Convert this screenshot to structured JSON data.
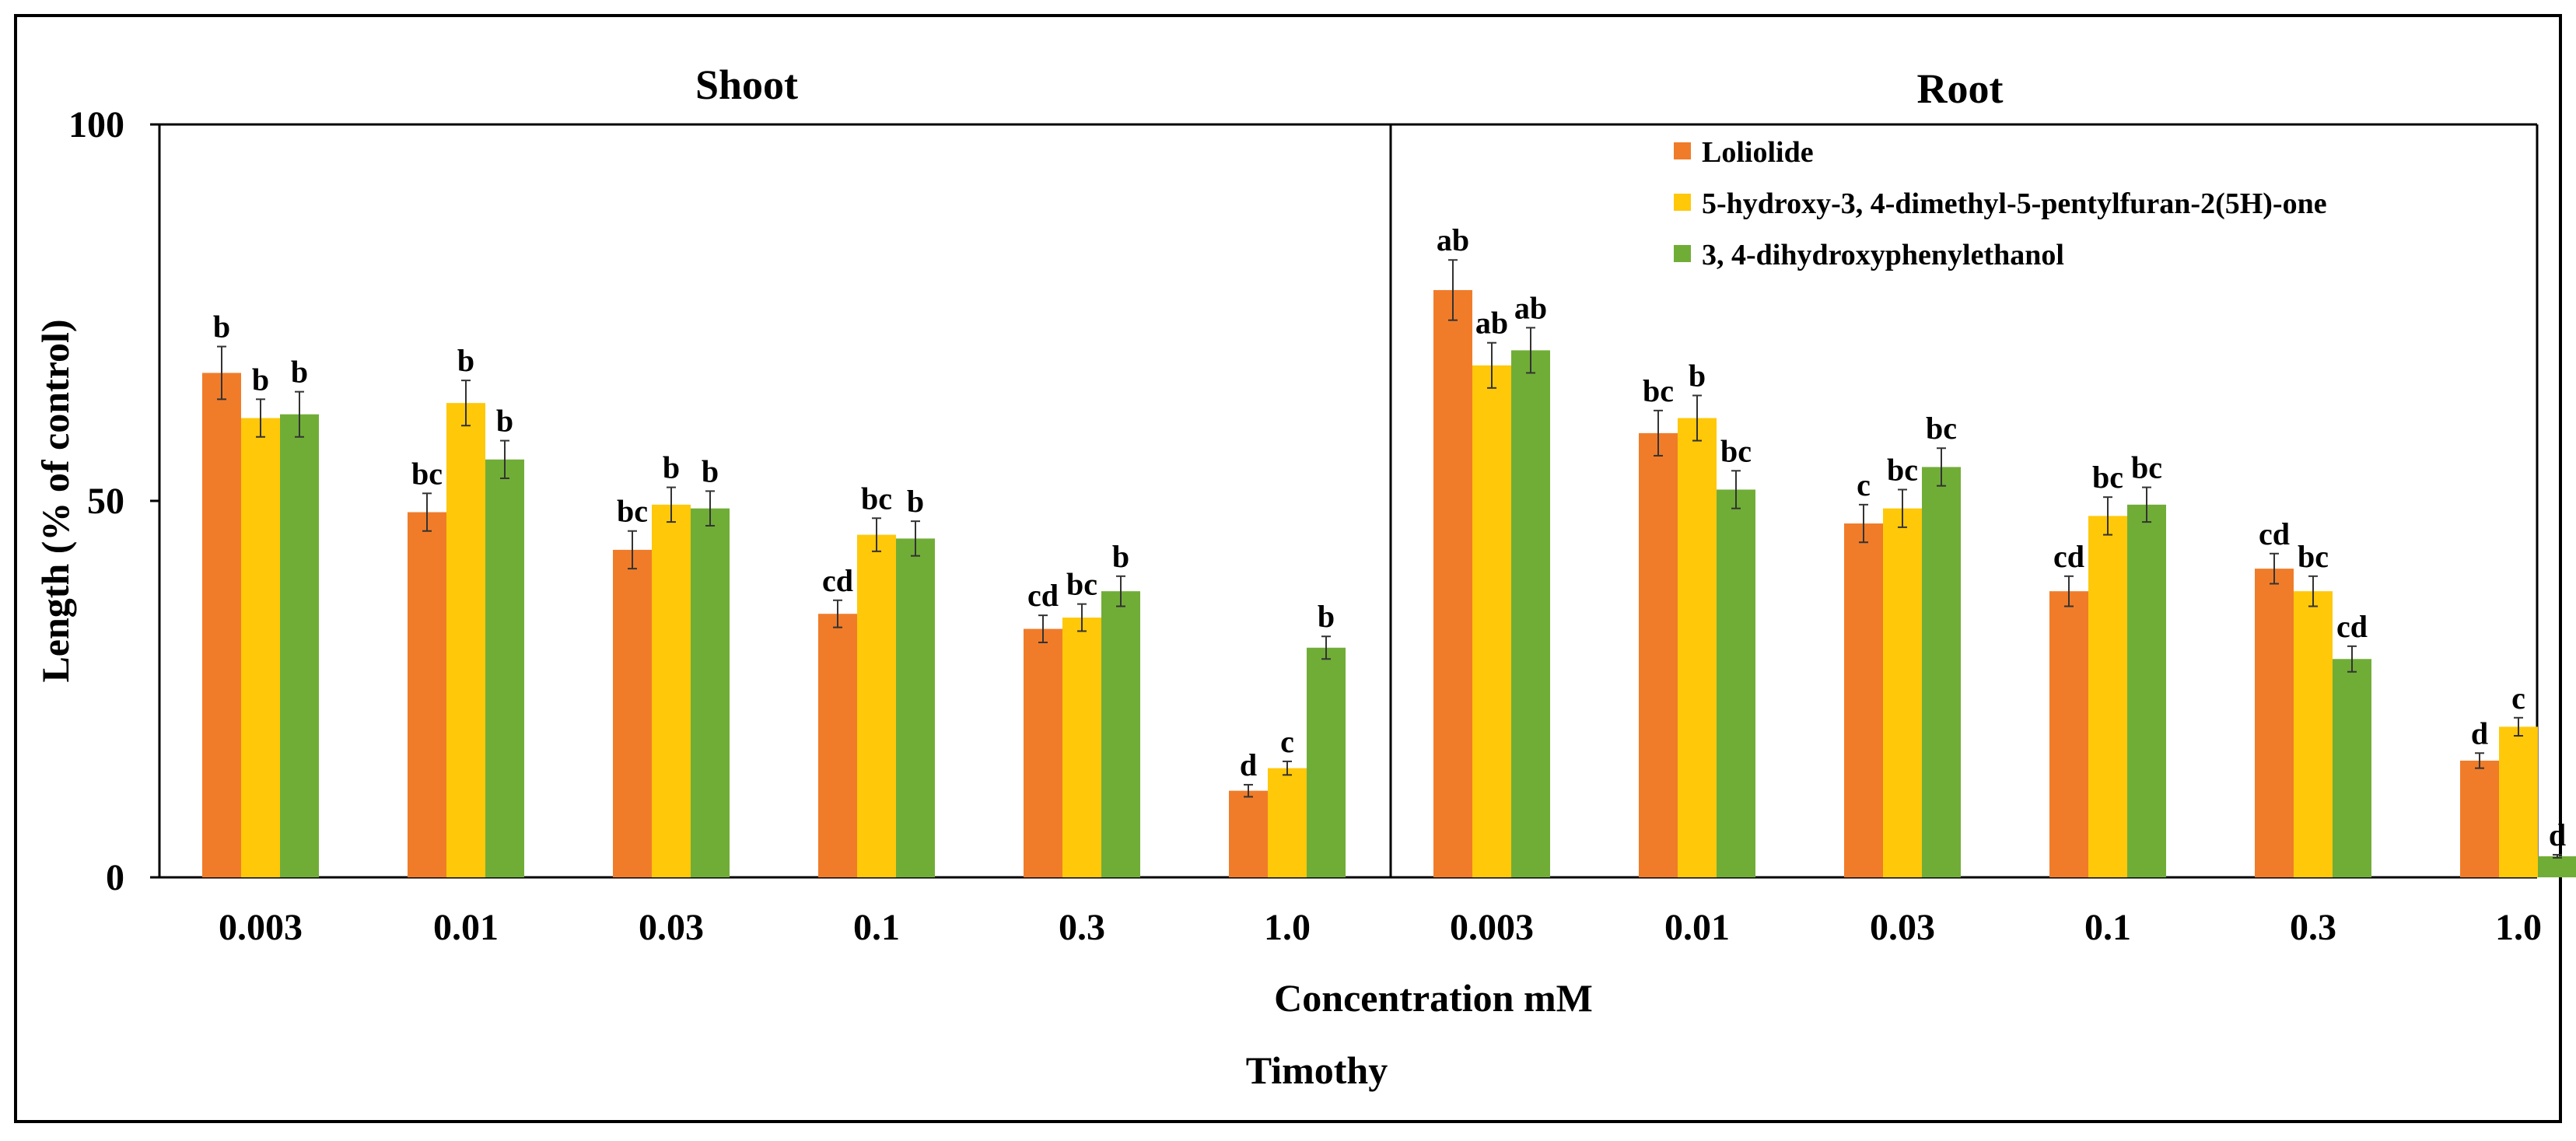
{
  "chart_data": {
    "type": "bar",
    "title": "Timothy",
    "xlabel": "Concentration mM",
    "ylabel": "Length (% of control)",
    "ylim": [
      0,
      100
    ],
    "yticks": [
      "0",
      "50",
      "100"
    ],
    "categories": [
      "0.003",
      "0.01",
      "0.03",
      "0.1",
      "0.3",
      "1.0"
    ],
    "legend_position": "top-right",
    "series_names": [
      "Loliolide",
      "5-hydroxy-3, 4-dimethyl-5-pentylfuran-2(5H)-one",
      "3, 4-dihydroxyphenylethanol"
    ],
    "colors": [
      "#F07C2A",
      "#FFC809",
      "#70AD37"
    ],
    "panels": [
      {
        "title": "Shoot",
        "series": [
          {
            "name": "Loliolide",
            "values": [
              67,
              48.5,
              43.5,
              35,
              33,
              11.5
            ],
            "errors": [
              3.5,
              2.5,
              2.5,
              1.8,
              1.8,
              0.8
            ],
            "labels": [
              "b",
              "bc",
              "bc",
              "cd",
              "cd",
              "d"
            ]
          },
          {
            "name": "5-hydroxy-3, 4-dimethyl-5-pentylfuran-2(5H)-one",
            "values": [
              61,
              63,
              49.5,
              45.5,
              34.5,
              14.5
            ],
            "errors": [
              2.5,
              3,
              2.3,
              2.2,
              1.8,
              0.9
            ],
            "labels": [
              "b",
              "b",
              "b",
              "bc",
              "bc",
              "c"
            ]
          },
          {
            "name": "3, 4-dihydroxyphenylethanol",
            "values": [
              61.5,
              55.5,
              49,
              45,
              38,
              30.5
            ],
            "errors": [
              3,
              2.5,
              2.3,
              2.3,
              2,
              1.5
            ],
            "labels": [
              "b",
              "b",
              "b",
              "b",
              "b",
              "b"
            ]
          }
        ]
      },
      {
        "title": "Root",
        "series": [
          {
            "name": "Loliolide",
            "values": [
              78,
              59,
              47,
              38,
              41,
              15.5
            ],
            "errors": [
              4,
              3,
              2.5,
              2,
              2,
              1
            ],
            "labels": [
              "ab",
              "bc",
              "c",
              "cd",
              "cd",
              "d"
            ]
          },
          {
            "name": "5-hydroxy-3, 4-dimethyl-5-pentylfuran-2(5H)-one",
            "values": [
              68,
              61,
              49,
              48,
              38,
              20
            ],
            "errors": [
              3,
              3,
              2.5,
              2.5,
              2,
              1.2
            ],
            "labels": [
              "ab",
              "b",
              "bc",
              "bc",
              "bc",
              "c"
            ]
          },
          {
            "name": "3, 4-dihydroxyphenylethanol",
            "values": [
              70,
              51.5,
              54.5,
              49.5,
              29,
              2.8
            ],
            "errors": [
              3,
              2.5,
              2.5,
              2.3,
              1.7,
              0.2
            ],
            "labels": [
              "ab",
              "bc",
              "bc",
              "bc",
              "cd",
              "d"
            ]
          }
        ]
      }
    ]
  }
}
